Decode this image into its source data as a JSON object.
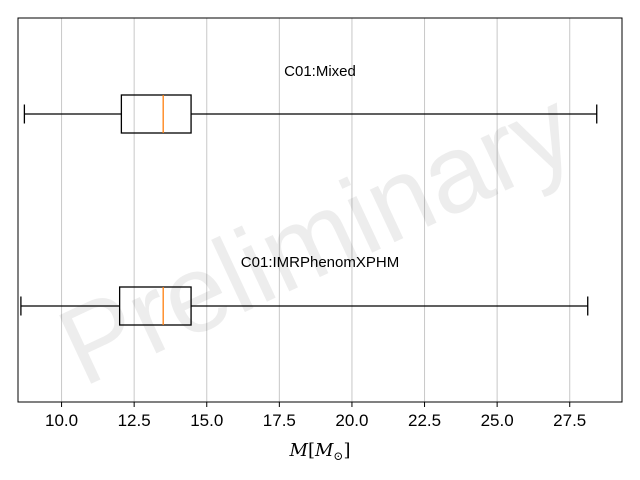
{
  "watermark": "Preliminary",
  "chart_data": {
    "type": "boxplot",
    "orientation": "horizontal",
    "xlabel_tex": "M[M_\\odot]",
    "xlim": [
      8.5,
      29.3
    ],
    "xticks": [
      10.0,
      12.5,
      15.0,
      17.5,
      20.0,
      22.5,
      25.0,
      27.5
    ],
    "xtick_labels": [
      "10.0",
      "12.5",
      "15.0",
      "17.5",
      "20.0",
      "22.5",
      "25.0",
      "27.5"
    ],
    "grid": "vertical",
    "median_color": "#ff7f0e",
    "series": [
      {
        "name": "C01:Mixed",
        "whisker_low": 8.72,
        "q1": 12.06,
        "median": 13.5,
        "q3": 14.46,
        "whisker_high": 28.43
      },
      {
        "name": "C01:IMRPhenomXPHM",
        "whisker_low": 8.6,
        "q1": 12.0,
        "median": 13.5,
        "q3": 14.46,
        "whisker_high": 28.12
      }
    ]
  }
}
